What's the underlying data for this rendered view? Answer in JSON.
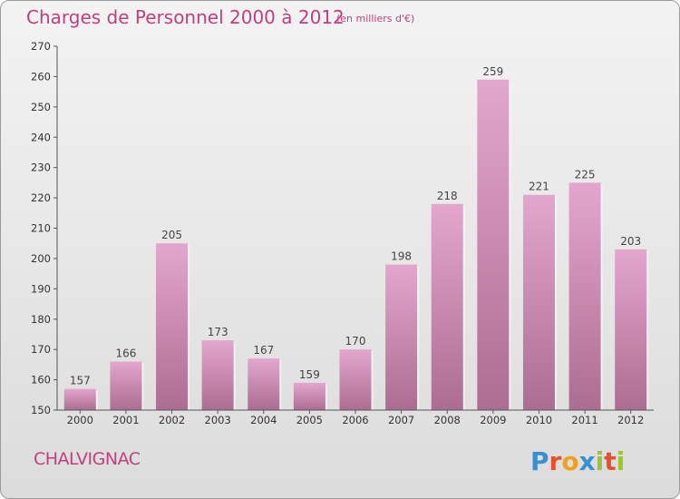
{
  "header": {
    "title": "Charges de Personnel 2000 à 2012",
    "unit_note": "(en milliers d'€)"
  },
  "footer": {
    "commune": "CHALVIGNAC",
    "logo_text": "Proxiti"
  },
  "colors": {
    "accent": "#c0407e",
    "bar_top": "#e3a6cc",
    "bar_bottom": "#ad6d93",
    "axis": "#555555"
  },
  "chart_data": {
    "type": "bar",
    "title": "Charges de Personnel 2000 à 2012",
    "subtitle": "(en milliers d'€)",
    "xlabel": "",
    "ylabel": "",
    "categories": [
      "2000",
      "2001",
      "2002",
      "2003",
      "2004",
      "2005",
      "2006",
      "2007",
      "2008",
      "2009",
      "2010",
      "2011",
      "2012"
    ],
    "values": [
      157,
      166,
      205,
      173,
      167,
      159,
      170,
      198,
      218,
      259,
      221,
      225,
      203
    ],
    "ylim": [
      150,
      270
    ],
    "yticks": [
      150,
      160,
      170,
      180,
      190,
      200,
      210,
      220,
      230,
      240,
      250,
      260,
      270
    ],
    "grid": false,
    "legend": "none",
    "data_labels": true
  }
}
